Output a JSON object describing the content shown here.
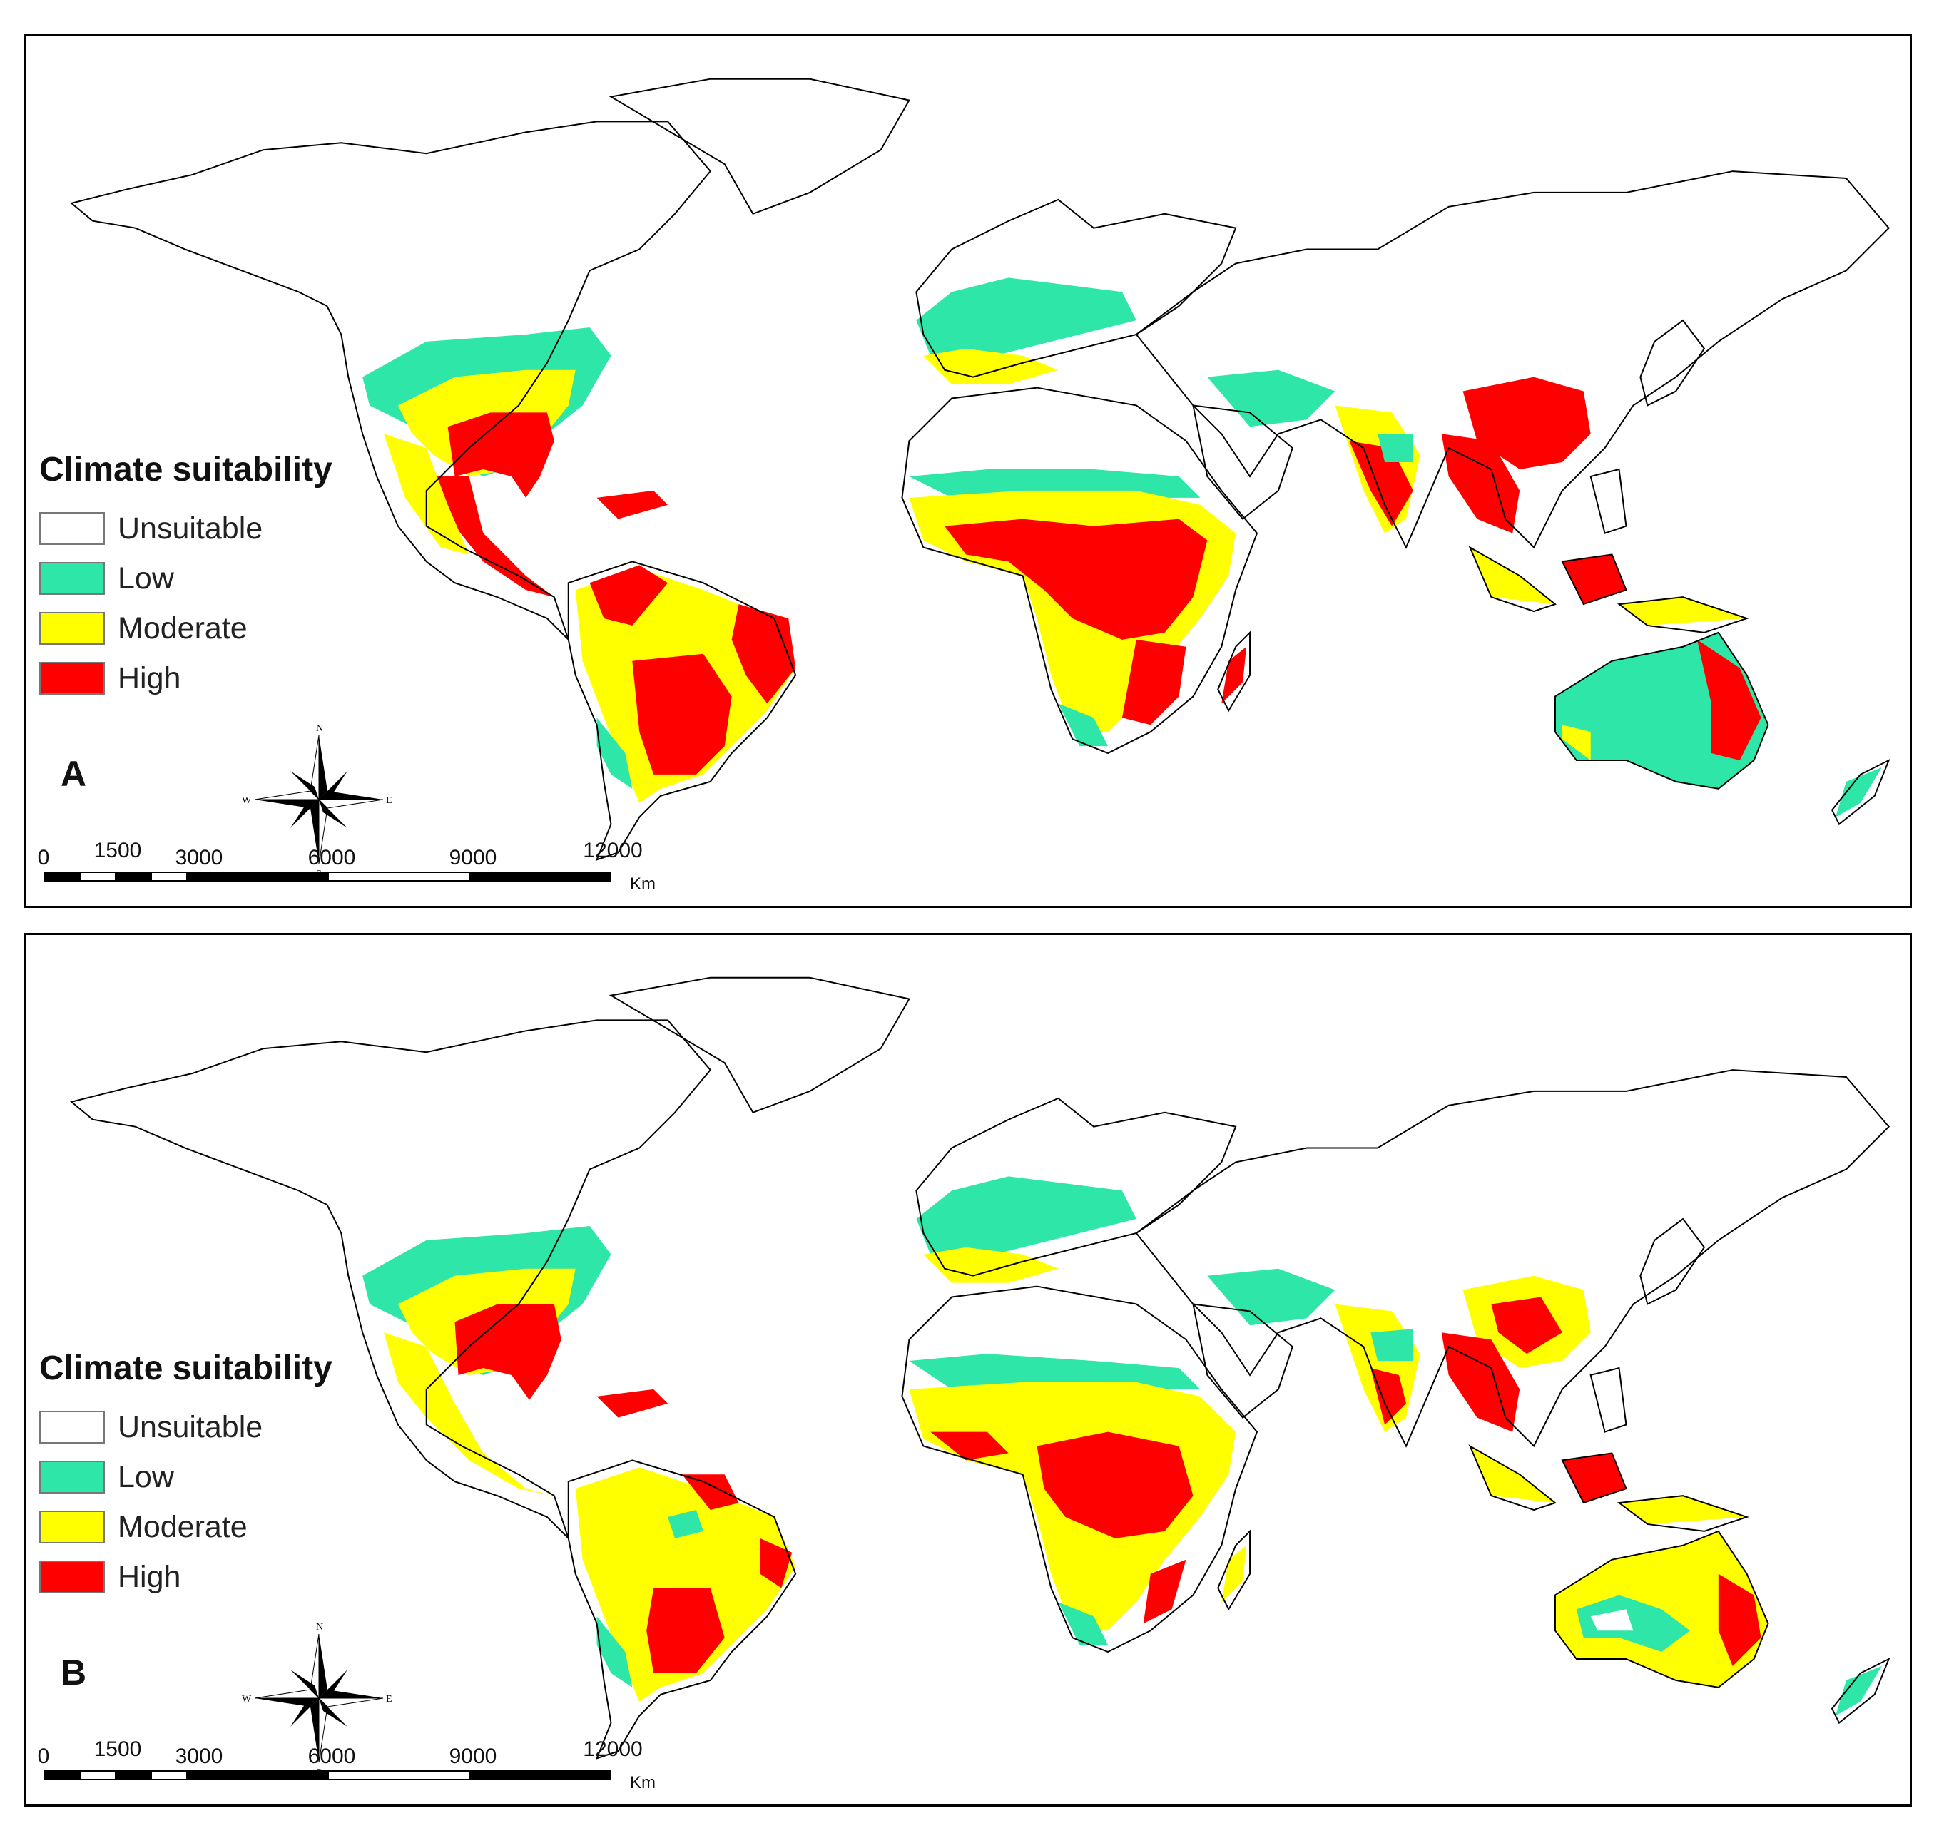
{
  "legend": {
    "title": "Climate suitability",
    "classes": [
      {
        "label": "Unsuitable",
        "color": "#ffffff"
      },
      {
        "label": "Low",
        "color": "#2ee6a8"
      },
      {
        "label": "Moderate",
        "color": "#ffff00"
      },
      {
        "label": "High",
        "color": "#ff0000"
      }
    ]
  },
  "panels": [
    {
      "letter": "A"
    },
    {
      "letter": "B"
    }
  ],
  "compass": {
    "n": "N",
    "s": "S",
    "e": "E",
    "w": "W"
  },
  "scale_bar": {
    "labels": [
      "0",
      "1500",
      "3000",
      "6000",
      "9000",
      "12000"
    ],
    "unit": "Km"
  }
}
